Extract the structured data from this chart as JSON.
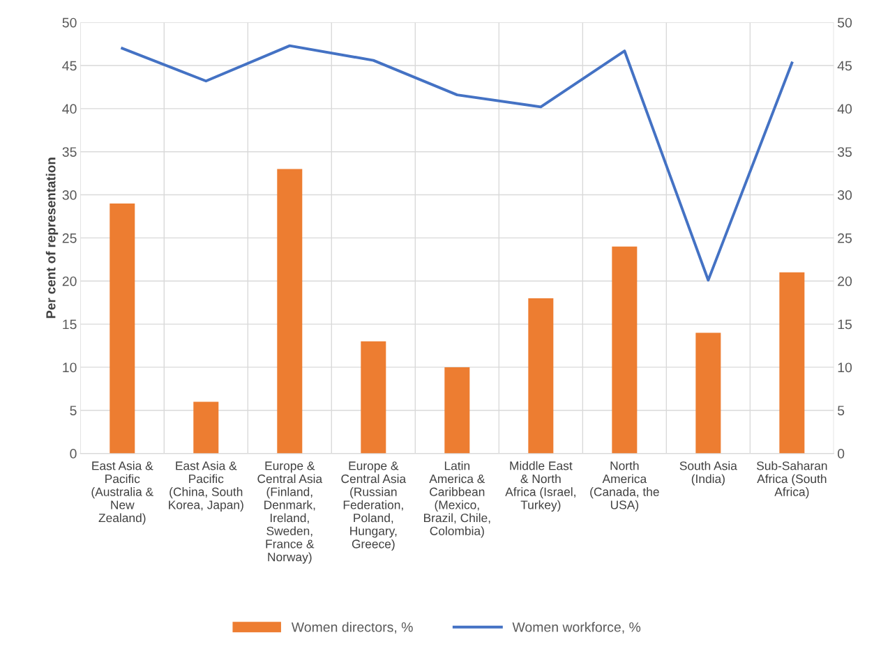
{
  "chart_data": {
    "type": "bar",
    "ylabel": "Per cent of representation",
    "categories": [
      "East Asia &\nPacific\n(Australia &\nNew\nZealand)",
      "East Asia &\nPacific\n(China, South\nKorea, Japan)",
      "Europe &\nCentral Asia\n(Finland,\nDenmark,\nIreland,\nSweden,\nFrance &\nNorway)",
      "Europe &\nCentral Asia\n(Russian\nFederation,\nPoland,\nHungary,\nGreece)",
      "Latin\nAmerica &\nCaribbean\n(Mexico,\nBrazil, Chile,\nColombia)",
      "Middle East\n& North\nAfrica (Israel,\nTurkey)",
      "North\nAmerica\n(Canada, the\nUSA)",
      "South Asia\n(India)",
      "Sub-Saharan\nAfrica (South\nAfrica)"
    ],
    "series": [
      {
        "name": "Women directors, %",
        "color": "#ed7d31",
        "values": [
          29,
          6,
          33,
          13,
          10,
          18,
          24,
          14,
          21
        ]
      },
      {
        "name": "Women workforce, %",
        "type": "line",
        "color": "#4472c4",
        "values": [
          47.0,
          43.2,
          47.3,
          45.6,
          41.6,
          40.2,
          46.7,
          20.1,
          45.3
        ]
      }
    ],
    "ylim": [
      0,
      50
    ],
    "yticks": [
      0,
      5,
      10,
      15,
      20,
      25,
      30,
      35,
      40,
      45,
      50
    ],
    "y2lim": [
      0,
      50
    ],
    "y2ticks": [
      0,
      5,
      10,
      15,
      20,
      25,
      30,
      35,
      40,
      45,
      50
    ],
    "grid": true,
    "legend": "bottom",
    "marker": "none",
    "line_style": "solid"
  }
}
